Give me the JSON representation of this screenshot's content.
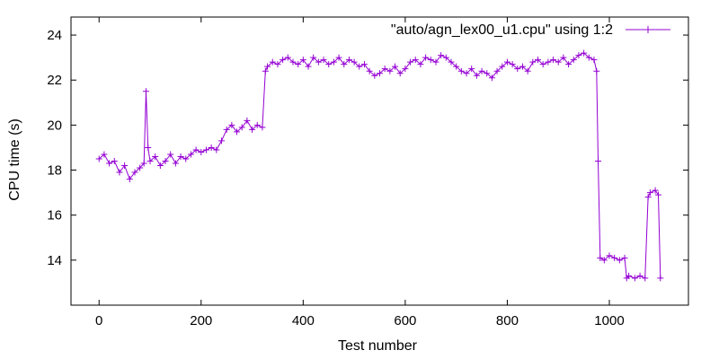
{
  "chart_data": {
    "type": "line",
    "title": "",
    "xlabel": "Test number",
    "ylabel": "CPU time (s)",
    "xlim": [
      -55,
      1155
    ],
    "ylim": [
      12.0,
      24.8
    ],
    "x_ticks": [
      0,
      200,
      400,
      600,
      800,
      1000
    ],
    "y_ticks": [
      14,
      16,
      18,
      20,
      22,
      24
    ],
    "grid": false,
    "legend_position": "top-right",
    "series": [
      {
        "name": "\"auto/agn_lex00_u1.cpu\" using 1:2",
        "color": "#9400d3",
        "marker": "plus",
        "x": [
          0,
          10,
          20,
          30,
          40,
          50,
          60,
          70,
          80,
          88,
          92,
          96,
          100,
          110,
          120,
          130,
          140,
          150,
          160,
          170,
          180,
          190,
          200,
          210,
          220,
          230,
          240,
          250,
          260,
          270,
          280,
          290,
          300,
          310,
          320,
          326,
          330,
          340,
          350,
          360,
          370,
          380,
          390,
          400,
          410,
          420,
          430,
          440,
          450,
          460,
          470,
          480,
          490,
          500,
          510,
          520,
          530,
          540,
          550,
          560,
          570,
          580,
          590,
          600,
          610,
          620,
          630,
          640,
          650,
          660,
          670,
          680,
          690,
          700,
          710,
          720,
          730,
          740,
          750,
          760,
          770,
          780,
          790,
          800,
          810,
          820,
          830,
          840,
          850,
          860,
          870,
          880,
          890,
          900,
          910,
          920,
          930,
          940,
          950,
          960,
          970,
          975,
          978,
          982,
          990,
          1000,
          1010,
          1020,
          1030,
          1034,
          1038,
          1050,
          1060,
          1070,
          1076,
          1080,
          1090,
          1096,
          1100
        ],
        "y": [
          18.5,
          18.7,
          18.3,
          18.4,
          17.9,
          18.2,
          17.6,
          17.9,
          18.1,
          18.3,
          21.5,
          19.0,
          18.4,
          18.6,
          18.2,
          18.4,
          18.7,
          18.3,
          18.6,
          18.5,
          18.7,
          18.9,
          18.8,
          18.9,
          19.0,
          18.9,
          19.3,
          19.8,
          20.0,
          19.7,
          19.9,
          20.2,
          19.8,
          20.0,
          19.9,
          22.4,
          22.6,
          22.8,
          22.7,
          22.9,
          23.0,
          22.8,
          22.7,
          22.9,
          22.6,
          23.0,
          22.8,
          22.9,
          22.7,
          22.8,
          23.0,
          22.7,
          22.9,
          22.8,
          22.6,
          22.7,
          22.4,
          22.2,
          22.3,
          22.5,
          22.4,
          22.6,
          22.3,
          22.5,
          22.8,
          22.9,
          22.7,
          23.0,
          22.9,
          22.8,
          23.1,
          23.0,
          22.8,
          22.6,
          22.4,
          22.3,
          22.5,
          22.2,
          22.4,
          22.3,
          22.1,
          22.4,
          22.6,
          22.8,
          22.7,
          22.5,
          22.6,
          22.4,
          22.8,
          22.9,
          22.7,
          22.8,
          22.9,
          22.8,
          23.0,
          22.7,
          22.9,
          23.1,
          23.2,
          23.0,
          22.9,
          22.4,
          18.4,
          14.1,
          14.0,
          14.2,
          14.1,
          14.0,
          14.1,
          13.2,
          13.3,
          13.2,
          13.3,
          13.2,
          16.8,
          17.0,
          17.1,
          16.9,
          13.2
        ]
      }
    ]
  }
}
